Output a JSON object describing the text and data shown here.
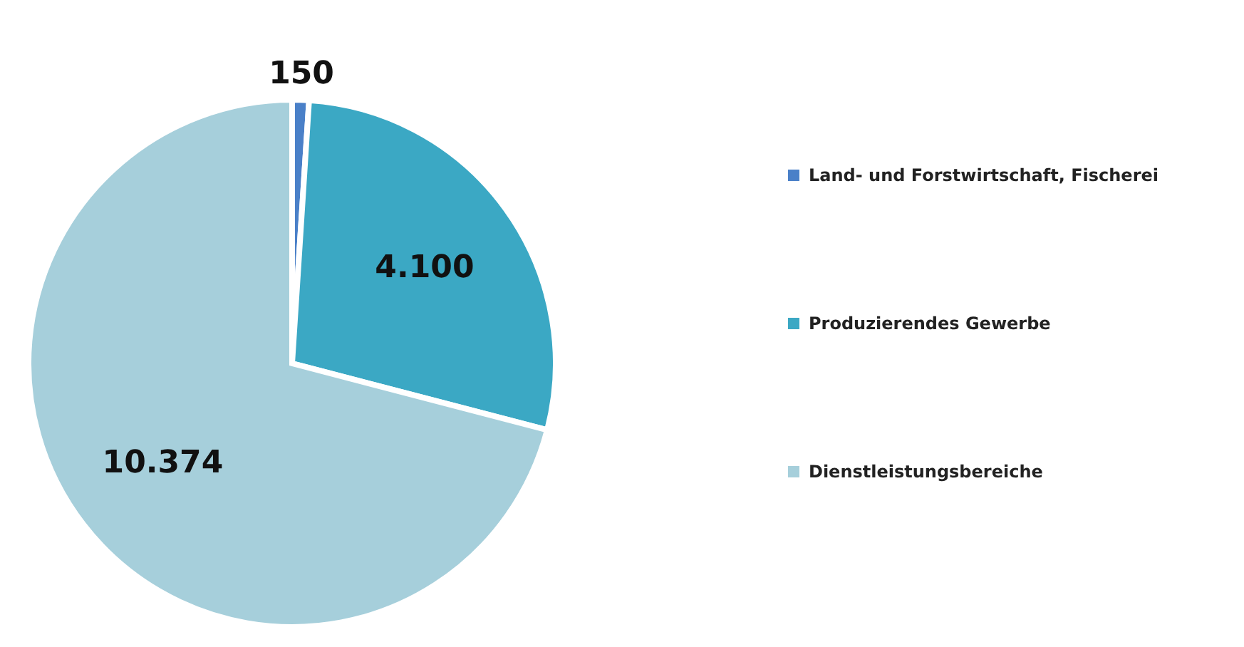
{
  "chart_data": {
    "type": "pie",
    "categories": [
      "Land- und Forstwirtschaft, Fischerei",
      "Produzierendes Gewerbe",
      "Dienstleistungsbereiche"
    ],
    "values": [
      150,
      4100,
      10374
    ],
    "colors": [
      "#4a80c8",
      "#3ba8c4",
      "#a6cfdb"
    ],
    "value_labels": [
      "150",
      "4.100",
      "10.374"
    ],
    "legend": "right"
  }
}
